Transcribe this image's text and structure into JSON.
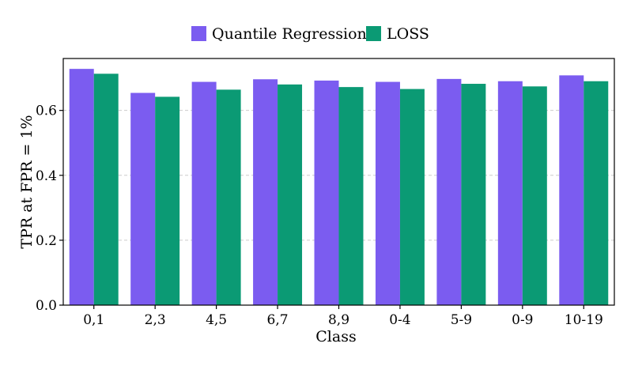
{
  "colors": {
    "quantile_regression": "#7b5cf0",
    "loss": "#0b9a74",
    "grid": "#cccccc",
    "axis": "#000000"
  },
  "chart_data": {
    "type": "bar",
    "title": "",
    "xlabel": "Class",
    "ylabel": "TPR at FPR = 1%",
    "categories": [
      "0,1",
      "2,3",
      "4,5",
      "6,7",
      "8,9",
      "0-4",
      "5-9",
      "0-9",
      "10-19"
    ],
    "series": [
      {
        "name": "Quantile Regression",
        "values": [
          0.728,
          0.654,
          0.688,
          0.696,
          0.692,
          0.688,
          0.697,
          0.69,
          0.708
        ]
      },
      {
        "name": "LOSS",
        "values": [
          0.713,
          0.642,
          0.664,
          0.68,
          0.672,
          0.666,
          0.682,
          0.674,
          0.69
        ]
      }
    ],
    "ylim": [
      0,
      0.76
    ],
    "yticks": [
      0.0,
      0.2,
      0.4,
      0.6
    ],
    "ytick_labels": [
      "0.0",
      "0.2",
      "0.4",
      "0.6"
    ],
    "grid": "horizontal-dashed",
    "legend_position": "top-center"
  }
}
